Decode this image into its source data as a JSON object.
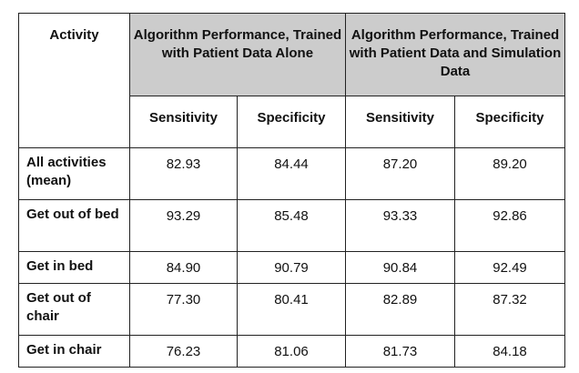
{
  "table": {
    "activity_header": "Activity",
    "groups": [
      "Algorithm Performance, Trained with Patient Data Alone",
      "Algorithm Performance, Trained with Patient Data and Simulation Data"
    ],
    "metrics": [
      "Sensitivity",
      "Specificity",
      "Sensitivity",
      "Specificity"
    ],
    "rows": [
      {
        "label": "All activities (mean)",
        "values": [
          "82.93",
          "84.44",
          "87.20",
          "89.20"
        ]
      },
      {
        "label": "Get out of bed",
        "values": [
          "93.29",
          "85.48",
          "93.33",
          "92.86"
        ]
      },
      {
        "label": "Get in bed",
        "values": [
          "84.90",
          "90.79",
          "90.84",
          "92.49"
        ]
      },
      {
        "label": "Get out of chair",
        "values": [
          "77.30",
          "80.41",
          "82.89",
          "87.32"
        ]
      },
      {
        "label": "Get in chair",
        "values": [
          "76.23",
          "81.06",
          "81.73",
          "84.18"
        ]
      }
    ]
  }
}
